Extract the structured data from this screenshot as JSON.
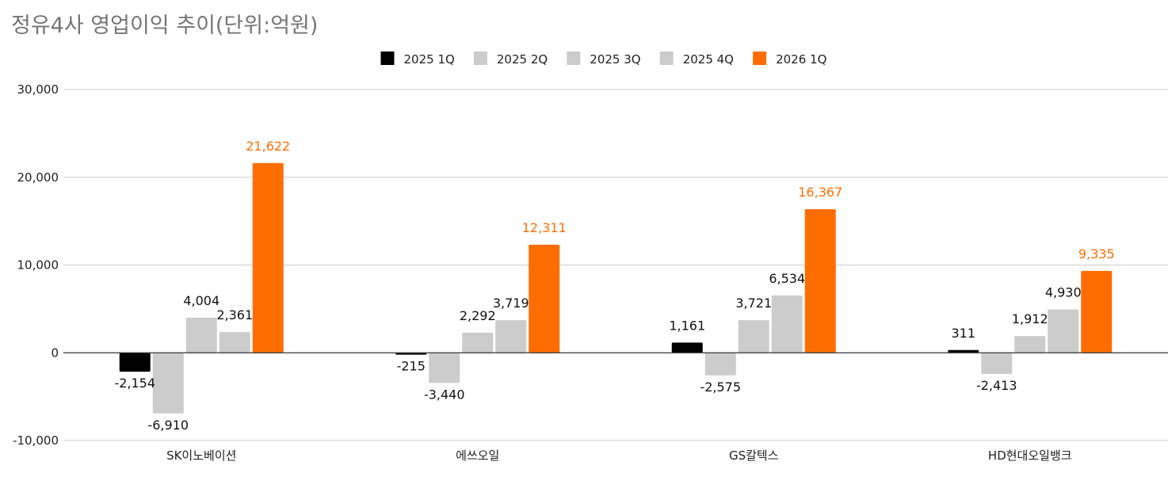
{
  "chart_data": {
    "type": "bar",
    "title": "정유4사 영업이익 추이(단위:억원)",
    "xlabel": "",
    "ylabel": "",
    "ylim": [
      -10000,
      30000
    ],
    "yticks": [
      -10000,
      0,
      10000,
      20000,
      30000
    ],
    "ytick_labels": [
      "-10,000",
      "0",
      "10,000",
      "20,000",
      "30,000"
    ],
    "grid": true,
    "legend_position": "top-center",
    "categories": [
      "SK이노베이션",
      "에쓰오일",
      "GS칼텍스",
      "HD현대오일뱅크"
    ],
    "series": [
      {
        "name": "2025 1Q",
        "color": "#000000",
        "label_color": "#111111",
        "values": [
          -2154,
          -215,
          1161,
          311
        ],
        "labels": [
          "-2,154",
          "-215",
          "1,161",
          "311"
        ]
      },
      {
        "name": "2025 2Q",
        "color": "#cccccc",
        "label_color": "#111111",
        "values": [
          -6910,
          -3440,
          -2575,
          -2413
        ],
        "labels": [
          "-6,910",
          "-3,440",
          "-2,575",
          "-2,413"
        ]
      },
      {
        "name": "2025 3Q",
        "color": "#cccccc",
        "label_color": "#111111",
        "values": [
          4004,
          2292,
          3721,
          1912
        ],
        "labels": [
          "4,004",
          "2,292",
          "3,721",
          "1,912"
        ]
      },
      {
        "name": "2025 4Q",
        "color": "#cccccc",
        "label_color": "#111111",
        "values": [
          2361,
          3719,
          6534,
          4930
        ],
        "labels": [
          "2,361",
          "3,719",
          "6,534",
          "4,930"
        ]
      },
      {
        "name": "2026 1Q",
        "color": "#ff6d01",
        "label_color": "#ff6d01",
        "values": [
          21622,
          12311,
          16367,
          9335
        ],
        "labels": [
          "21,622",
          "12,311",
          "16,367",
          "9,335"
        ]
      }
    ]
  }
}
